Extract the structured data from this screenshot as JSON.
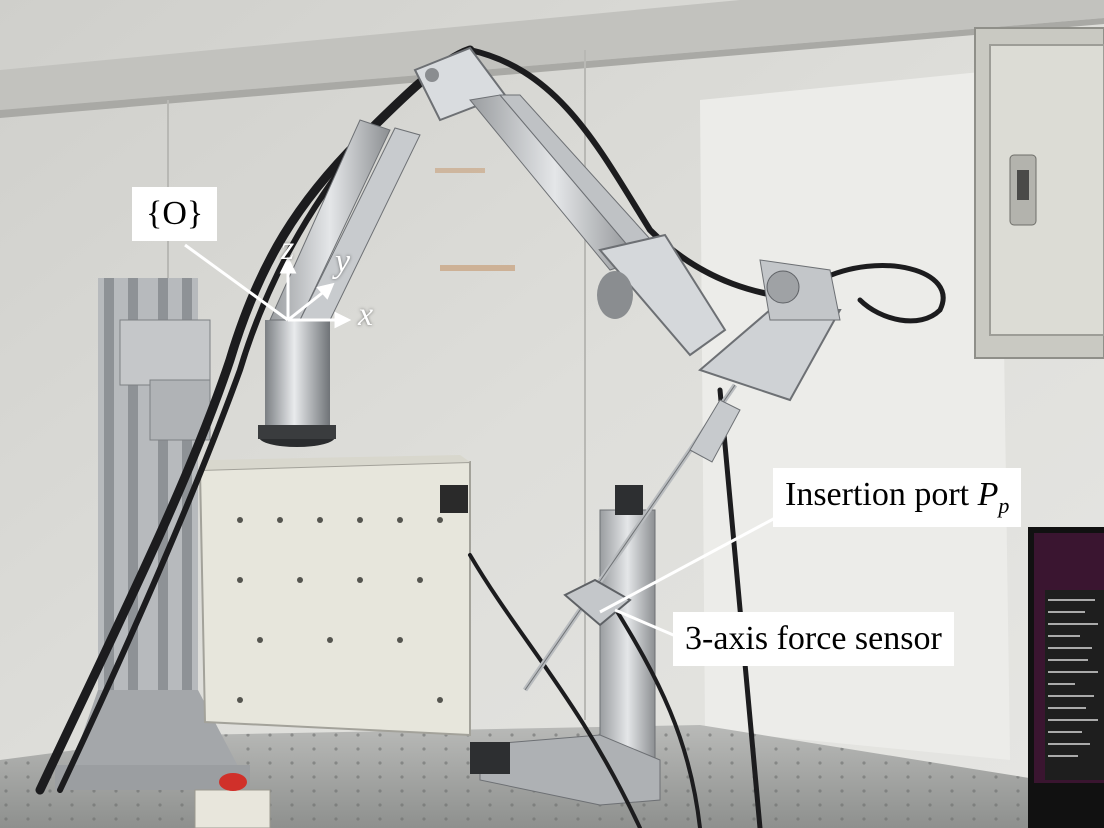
{
  "photo": {
    "subject": "robotic arm with surgical instrument on optical table"
  },
  "labels": {
    "origin": "{O}",
    "insertion_port_text": "Insertion port ",
    "insertion_port_symbol": "P",
    "insertion_port_subscript": "p",
    "force_sensor": "3-axis force sensor"
  },
  "axes": {
    "x": "x",
    "y": "y",
    "z": "z"
  },
  "colors": {
    "arrow": "#ffffff",
    "label_bg": "#ffffff",
    "label_text": "#000000"
  }
}
